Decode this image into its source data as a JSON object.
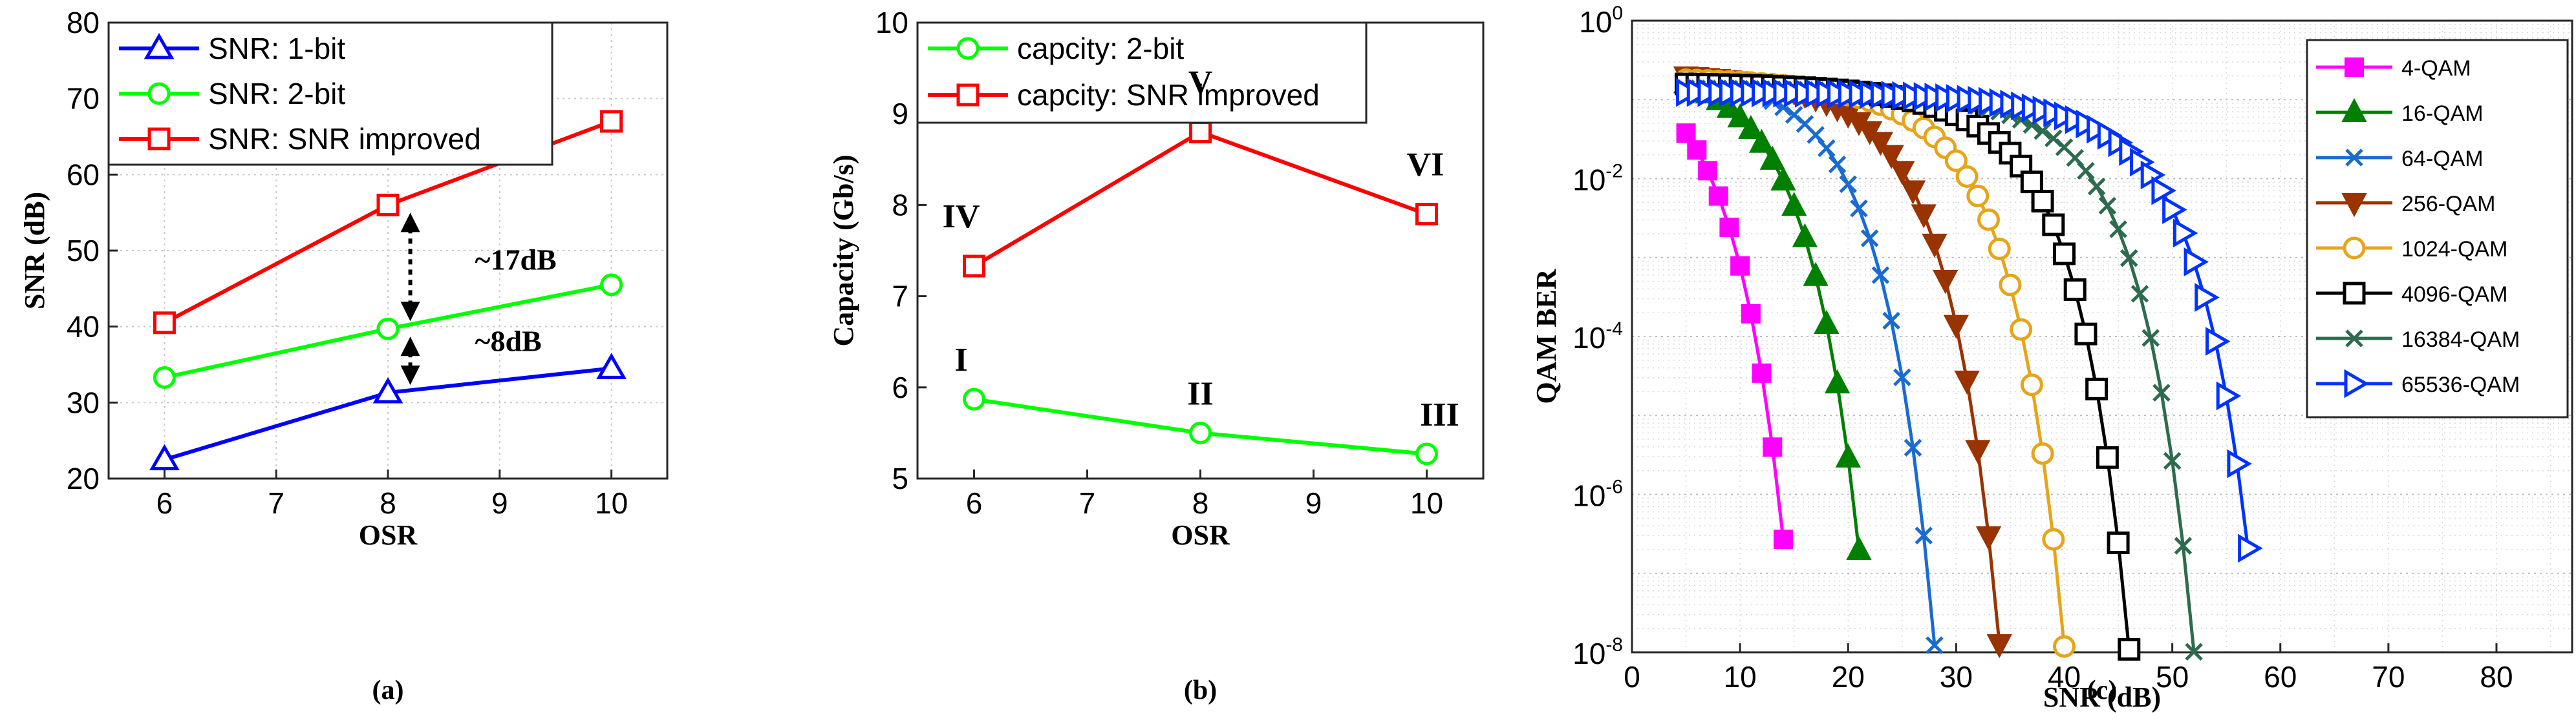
{
  "chart_data": [
    {
      "type": "line",
      "panel_label": "(a)",
      "xlabel": "OSR",
      "ylabel": "SNR (dB)",
      "xlim": [
        5.5,
        10.5
      ],
      "ylim": [
        20,
        80
      ],
      "xticks": [
        6,
        7,
        8,
        9,
        10
      ],
      "yticks": [
        20,
        30,
        40,
        50,
        60,
        70,
        80
      ],
      "grid": true,
      "legend_position": "top-left",
      "x": [
        6,
        8,
        10
      ],
      "series": [
        {
          "name": "SNR: 1-bit",
          "values": [
            22.5,
            31.3,
            34.5
          ],
          "color": "#0000ff",
          "marker": "triangle"
        },
        {
          "name": "SNR: 2-bit",
          "values": [
            33.3,
            39.7,
            45.5
          ],
          "color": "#00ff00",
          "marker": "circle"
        },
        {
          "name": "SNR: SNR improved",
          "values": [
            40.5,
            56,
            67
          ],
          "color": "#ff0000",
          "marker": "square"
        }
      ],
      "annotations": [
        {
          "text": "~17dB",
          "x": 8.2,
          "y1": 39.7,
          "y2": 56
        },
        {
          "text": "~8dB",
          "x": 8.2,
          "y1": 31.3,
          "y2": 39.7
        }
      ]
    },
    {
      "type": "line",
      "panel_label": "(b)",
      "xlabel": "OSR",
      "ylabel": "Capacity (Gb/s)",
      "xlim": [
        5.5,
        10.5
      ],
      "ylim": [
        5,
        10
      ],
      "xticks": [
        6,
        7,
        8,
        9,
        10
      ],
      "yticks": [
        5,
        6,
        7,
        8,
        9,
        10
      ],
      "grid": false,
      "legend_position": "top-left",
      "x": [
        6,
        8,
        10
      ],
      "series": [
        {
          "name": "capcity: 2-bit",
          "values": [
            5.87,
            5.5,
            5.27
          ],
          "color": "#00ff00",
          "marker": "circle",
          "point_labels": [
            "I",
            "II",
            "III"
          ]
        },
        {
          "name": "capcity: SNR improved",
          "values": [
            7.33,
            8.8,
            7.9
          ],
          "color": "#ff0000",
          "marker": "square",
          "point_labels": [
            "IV",
            "V",
            "VI"
          ]
        }
      ]
    },
    {
      "type": "line",
      "panel_label": "(c)",
      "xlabel": "SNR (dB)",
      "ylabel": "QAM BER",
      "xlim": [
        0,
        87
      ],
      "ylim": [
        1e-08,
        1
      ],
      "yscale": "log",
      "xticks": [
        0,
        10,
        20,
        30,
        40,
        50,
        60,
        70,
        80
      ],
      "ytick_exponents": [
        -8,
        -6,
        -4,
        -2,
        0
      ],
      "grid": true,
      "legend_position": "top-right",
      "series": [
        {
          "name": "4-QAM",
          "M": 4,
          "snr_max": 14,
          "color": "#ff00ff",
          "marker": "filled-square"
        },
        {
          "name": "16-QAM",
          "M": 16,
          "snr_max": 22,
          "color": "#007f00",
          "marker": "filled-triangle"
        },
        {
          "name": "64-QAM",
          "M": 64,
          "snr_max": 28,
          "color": "#1a6bd1",
          "marker": "x"
        },
        {
          "name": "256-QAM",
          "M": 256,
          "snr_max": 34,
          "color": "#993300",
          "marker": "filled-triangle-down"
        },
        {
          "name": "1024-QAM",
          "M": 1024,
          "snr_max": 40,
          "color": "#e6a519",
          "marker": "circle"
        },
        {
          "name": "4096-QAM",
          "M": 4096,
          "snr_max": 46,
          "color": "#000000",
          "marker": "square"
        },
        {
          "name": "16384-QAM",
          "M": 16384,
          "snr_max": 52,
          "color": "#2d6b4f",
          "marker": "x"
        },
        {
          "name": "65536-QAM",
          "M": 65536,
          "snr_max": 58,
          "color": "#0033ff",
          "marker": "triangle-right"
        }
      ]
    }
  ]
}
